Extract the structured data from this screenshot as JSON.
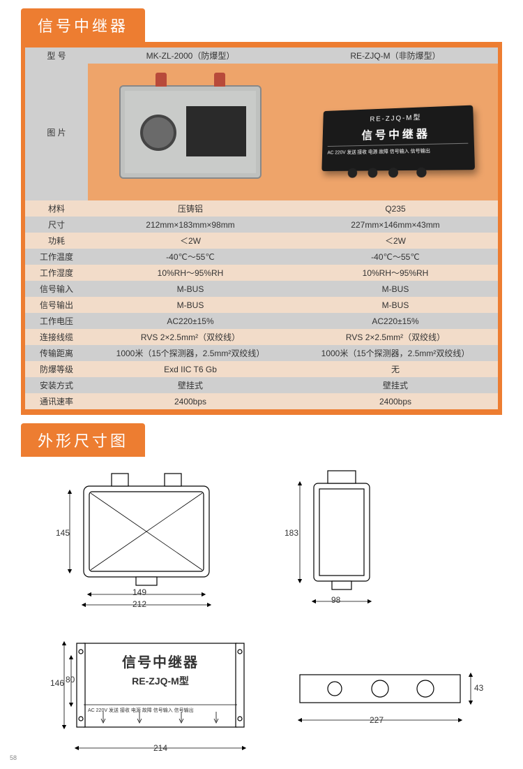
{
  "section1": {
    "title": "信号中继器"
  },
  "section2": {
    "title": "外形尺寸图"
  },
  "table": {
    "header_bg": "#cfcfcf",
    "alt_bg": "#f2dcc9",
    "wrap_bg": "#ed7d31",
    "img_bg": "#eea46a",
    "col_label": "型 号",
    "col1": "MK-ZL-2000（防爆型）",
    "col2": "RE-ZJQ-M（非防爆型）",
    "img_label": "图 片",
    "rows": [
      {
        "alt": true,
        "label": "材料",
        "v1": "压铸铝",
        "v2": "Q235"
      },
      {
        "alt": false,
        "label": "尺寸",
        "v1": "212mm×183mm×98mm",
        "v2": "227mm×146mm×43mm"
      },
      {
        "alt": true,
        "label": "功耗",
        "v1": "＜2W",
        "v2": "＜2W"
      },
      {
        "alt": false,
        "label": "工作温度",
        "v1": "-40℃～55℃",
        "v2": "-40℃～55℃"
      },
      {
        "alt": true,
        "label": "工作湿度",
        "v1": "10%RH～95%RH",
        "v2": "10%RH～95%RH"
      },
      {
        "alt": false,
        "label": "信号输入",
        "v1": "M-BUS",
        "v2": "M-BUS"
      },
      {
        "alt": true,
        "label": "信号输出",
        "v1": "M-BUS",
        "v2": "M-BUS"
      },
      {
        "alt": false,
        "label": "工作电压",
        "v1": "AC220±15%",
        "v2": "AC220±15%"
      },
      {
        "alt": true,
        "label": "连接线缆",
        "v1": "RVS 2×2.5mm²（双绞线）",
        "v2": "RVS 2×2.5mm²（双绞线）"
      },
      {
        "alt": false,
        "label": "传输距离",
        "v1": "1000米（15个探测器，2.5mm²双绞线）",
        "v2": "1000米（15个探测器，2.5mm²双绞线）"
      },
      {
        "alt": true,
        "label": "防爆等级",
        "v1": "Exd IIC T6 Gb",
        "v2": "无"
      },
      {
        "alt": false,
        "label": "安装方式",
        "v1": "壁挂式",
        "v2": "壁挂式"
      },
      {
        "alt": true,
        "label": "通讯速率",
        "v1": "2400bps",
        "v2": "2400bps"
      }
    ]
  },
  "product2_label": {
    "t1": "RE-ZJQ-M型",
    "t2": "信号中继器",
    "ports": "AC 220V   发送 接收 电源 故障   信号输入   信号输出"
  },
  "dims": {
    "front": {
      "w_outer": "212",
      "w_inner": "149",
      "h": "145"
    },
    "side": {
      "h": "183",
      "w": "98"
    },
    "b_front": {
      "w": "214",
      "h_outer": "146",
      "h_inner": "80",
      "title": "信号中继器",
      "sub": "RE-ZJQ-M型",
      "labels": "AC 220V    发送 接收 电源 故障    信号输入    信号输出"
    },
    "b_side": {
      "w": "227",
      "h": "43"
    }
  },
  "page_number": "58"
}
